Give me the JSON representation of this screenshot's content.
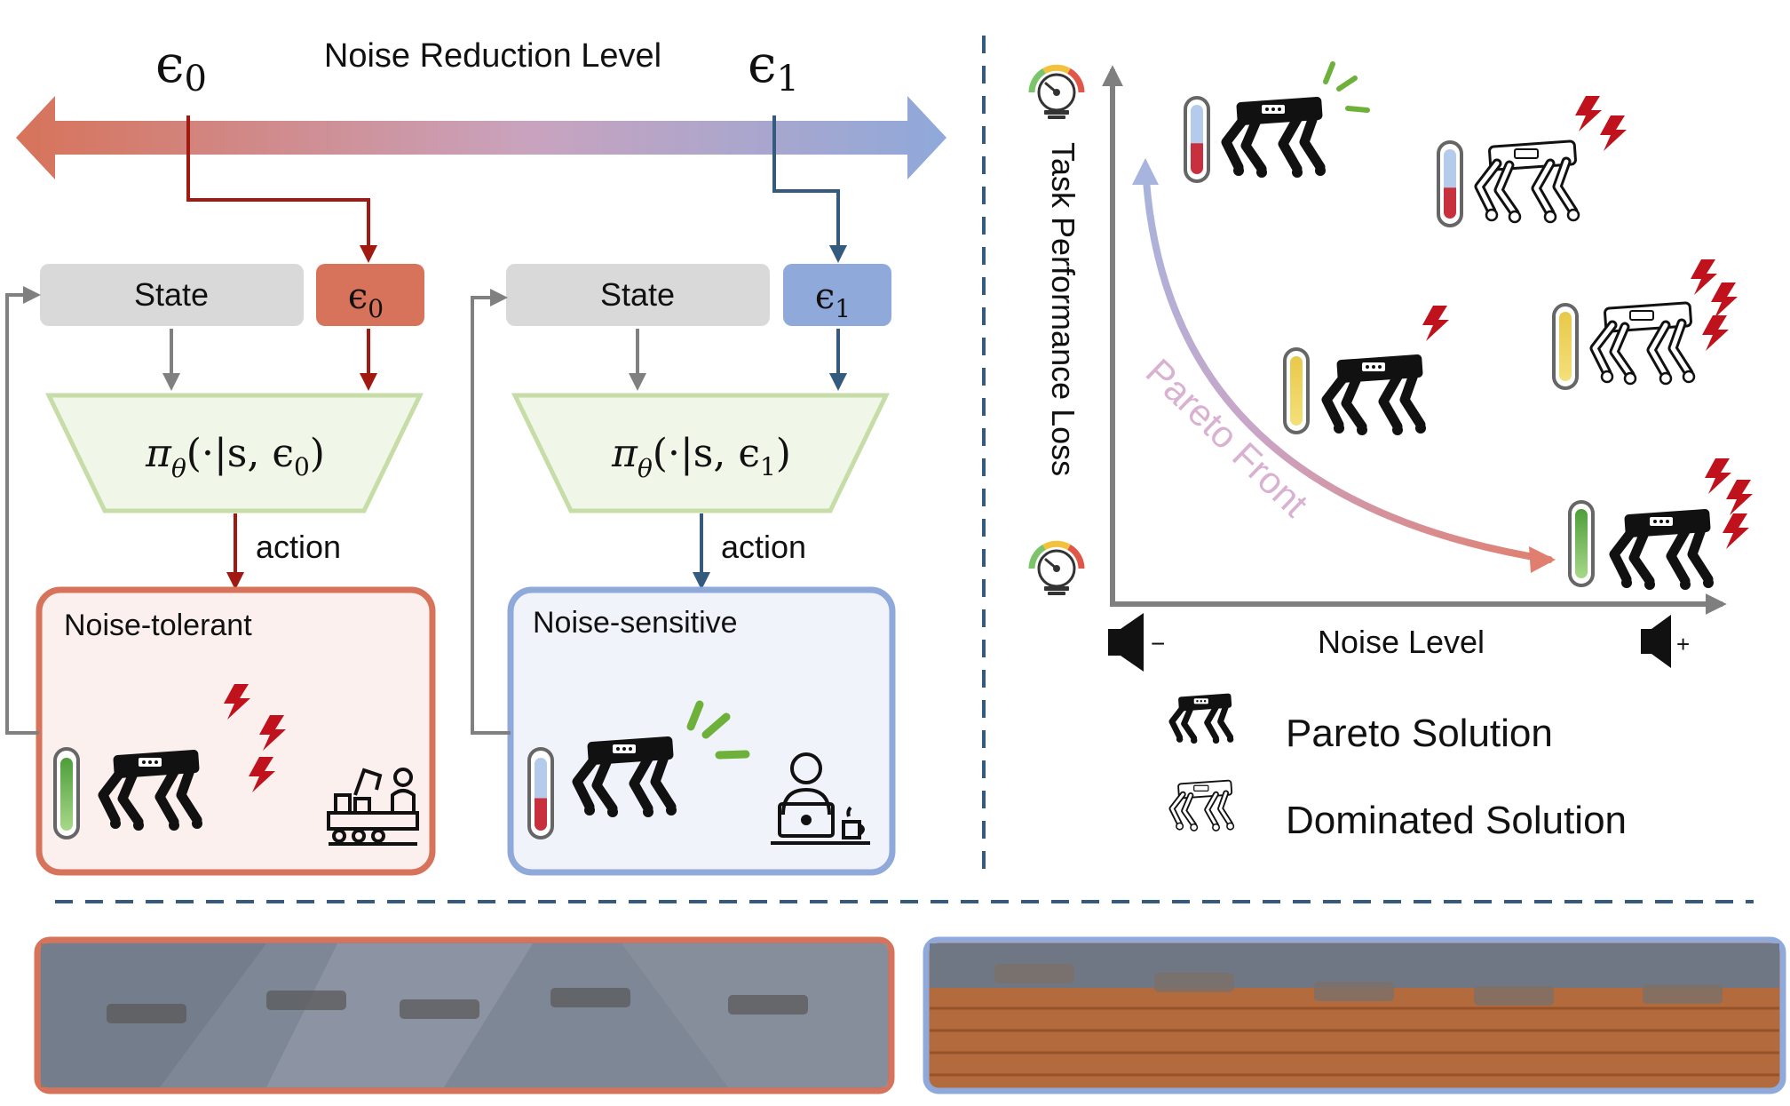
{
  "colors": {
    "red": "#D7735A",
    "red_dark": "#A11A12",
    "blue": "#8FA9DA",
    "blue_dark": "#345A7E",
    "gray_box": "#D9D9D9",
    "policy_fill": "#F1F7E8",
    "policy_stroke": "#C7DDA8",
    "green_mark": "#6DB13A"
  },
  "top": {
    "title": "Noise Reduction Level",
    "eps0_sym": "ϵ",
    "eps0_sub": "0",
    "eps1_sym": "ϵ",
    "eps1_sub": "1"
  },
  "left_branch": {
    "state": "State",
    "eps_sym": "ϵ",
    "eps_sub": "0",
    "policy_pi": "π",
    "policy_theta": "θ",
    "policy_args": "(·|s, ϵ",
    "policy_sub": "0",
    "policy_close": ")",
    "action": "action",
    "env": "Noise-tolerant",
    "meter_level": 0.85
  },
  "right_branch": {
    "state": "State",
    "eps_sym": "ϵ",
    "eps_sub": "1",
    "policy_pi": "π",
    "policy_theta": "θ",
    "policy_args": "(·|s, ϵ",
    "policy_sub": "1",
    "policy_close": ")",
    "action": "action",
    "env": "Noise-sensitive",
    "meter_level": 0.3
  },
  "plot": {
    "ylabel": "Task Performance Loss",
    "xlabel": "Noise Level",
    "front_label": "Pareto Front",
    "speaker_minus": "−",
    "speaker_plus": "+",
    "legend": {
      "pareto": "Pareto Solution",
      "dominated": "Dominated Solution"
    }
  }
}
